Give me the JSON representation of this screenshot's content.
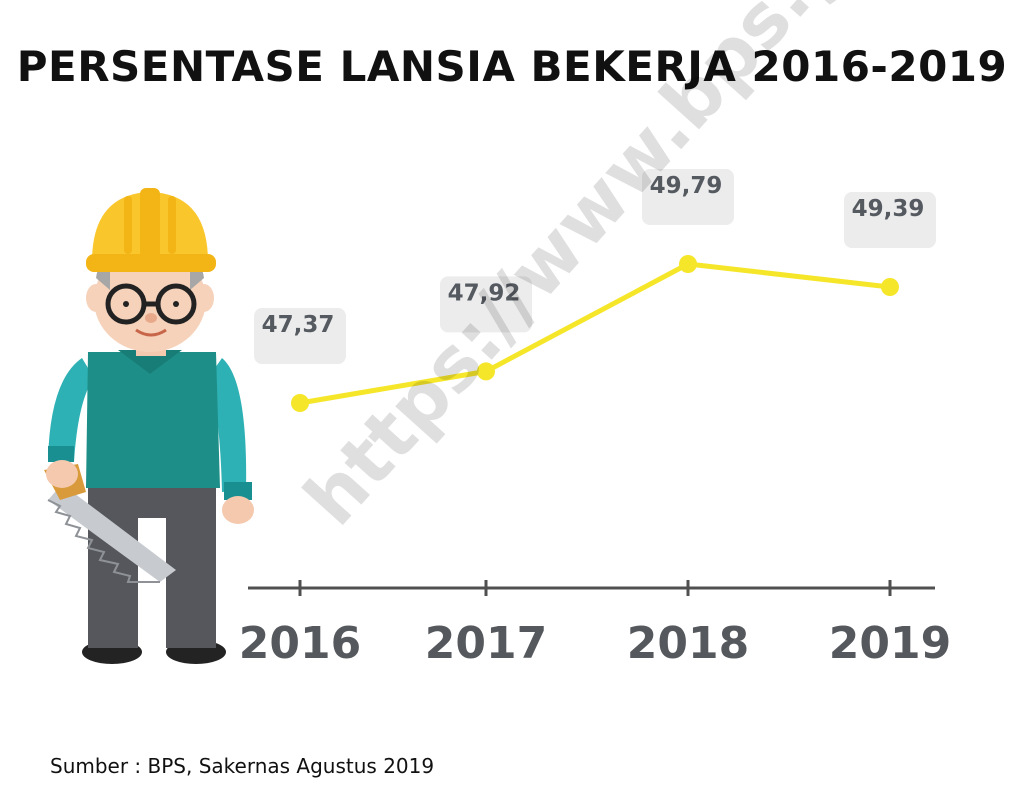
{
  "header": {
    "title": "PERSENTASE LANSIA BEKERJA 2016-2019"
  },
  "footer": {
    "source": "Sumber : BPS, Sakernas Agustus 2019"
  },
  "watermark": {
    "text": "https://www.bps.go.id"
  },
  "colors": {
    "line": "#f5e62a",
    "axis": "#505050",
    "label_box": "#ececed",
    "label_text": "#555a60"
  },
  "icons": {
    "illustration": "construction-worker-with-saw"
  },
  "chart_data": {
    "type": "line",
    "title": "PERSENTASE LANSIA BEKERJA 2016-2019",
    "xlabel": "",
    "ylabel": "",
    "categories": [
      "2016",
      "2017",
      "2018",
      "2019"
    ],
    "values": [
      47.37,
      47.92,
      49.79,
      49.39
    ],
    "value_labels": [
      "47,37",
      "47,92",
      "49,79",
      "49,39"
    ],
    "grid": false,
    "legend": "none"
  }
}
